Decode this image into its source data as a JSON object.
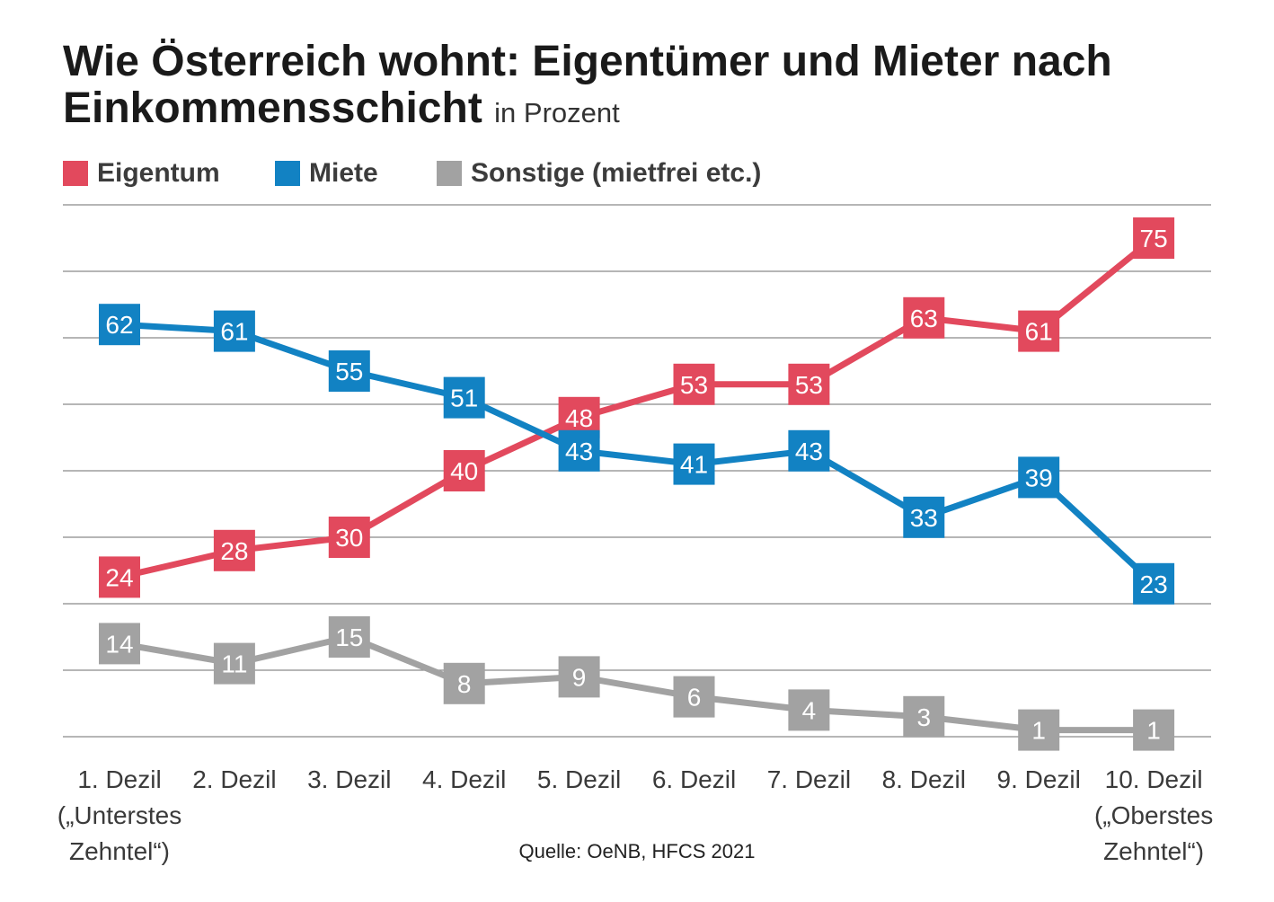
{
  "chart_data": {
    "type": "line",
    "title": "Wie Österreich wohnt: Eigentümer und Mieter nach Einkommensschicht",
    "subtitle": "in Prozent",
    "categories": [
      "1. Dezil",
      "2. Dezil",
      "3. Dezil",
      "4. Dezil",
      "5. Dezil",
      "6. Dezil",
      "7. Dezil",
      "8. Dezil",
      "9. Dezil",
      "10. Dezil"
    ],
    "category_notes": [
      [
        "(„Unterstes",
        "Zehntel“)"
      ],
      [],
      [],
      [],
      [],
      [],
      [],
      [],
      [],
      [
        "(„Oberstes",
        "Zehntel“)"
      ]
    ],
    "series": [
      {
        "name": "Eigentum",
        "color": "#e2495d",
        "values": [
          24,
          28,
          30,
          40,
          48,
          53,
          53,
          63,
          61,
          75
        ]
      },
      {
        "name": "Miete",
        "color": "#1282c3",
        "values": [
          62,
          61,
          55,
          51,
          43,
          41,
          43,
          33,
          39,
          23
        ]
      },
      {
        "name": "Sonstige (mietfrei etc.)",
        "color": "#a2a2a2",
        "values": [
          14,
          11,
          15,
          8,
          9,
          6,
          4,
          3,
          1,
          1
        ]
      }
    ],
    "ylim": [
      0,
      80
    ],
    "y_grid_step": 10,
    "grid": true,
    "legend_position": "top-left",
    "source": "Quelle: OeNB, HFCS 2021"
  }
}
